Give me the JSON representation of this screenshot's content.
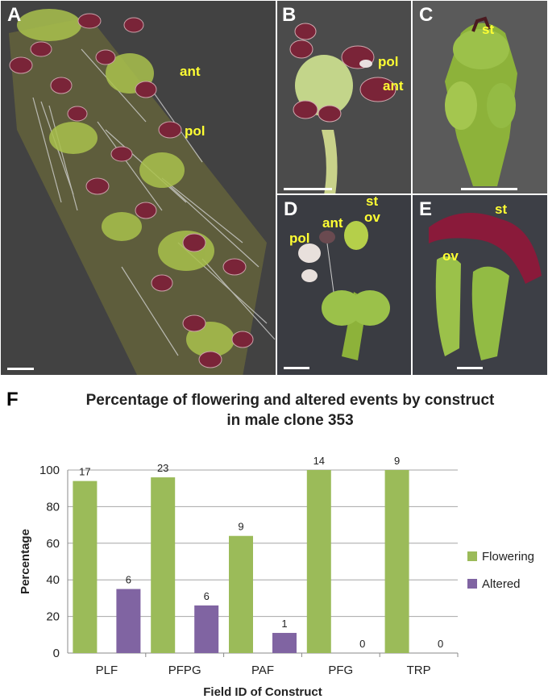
{
  "panels": {
    "A": {
      "letter": "A",
      "labels": {
        "ant": "ant",
        "pol": "pol"
      }
    },
    "B": {
      "letter": "B",
      "labels": {
        "pol": "pol",
        "ant": "ant"
      }
    },
    "C": {
      "letter": "C",
      "labels": {
        "st": "st"
      }
    },
    "D": {
      "letter": "D",
      "labels": {
        "st": "st",
        "ov": "ov",
        "ant": "ant",
        "pol": "pol"
      }
    },
    "E": {
      "letter": "E",
      "labels": {
        "st": "st",
        "ov": "ov"
      }
    },
    "F": {
      "letter": "F"
    }
  },
  "colors": {
    "flowering": "#9bbb59",
    "altered": "#8064a2",
    "label_yellow": "#ffff33",
    "photo_bg": "#3a3a3a",
    "green_tissue": "#a8c84a",
    "anther": "#7a2438"
  },
  "chart_data": {
    "type": "bar",
    "title_line1": "Percentage of flowering and altered events by construct",
    "title_line2": "in male clone 353",
    "xlabel": "Field ID of Construct",
    "ylabel": "Percentage",
    "ylim": [
      0,
      100
    ],
    "yticks": [
      0,
      20,
      40,
      60,
      80,
      100
    ],
    "categories": [
      "PLF",
      "PFPG",
      "PAF",
      "PFG",
      "TRP"
    ],
    "series": [
      {
        "name": "Flowering",
        "values": [
          94,
          96,
          64,
          100,
          100
        ],
        "labels": [
          "17",
          "23",
          "9",
          "14",
          "9"
        ]
      },
      {
        "name": "Altered",
        "values": [
          35,
          26,
          11,
          0,
          0
        ],
        "labels": [
          "6",
          "6",
          "1",
          "0",
          "0"
        ]
      }
    ],
    "grid": true,
    "legend": "right"
  }
}
